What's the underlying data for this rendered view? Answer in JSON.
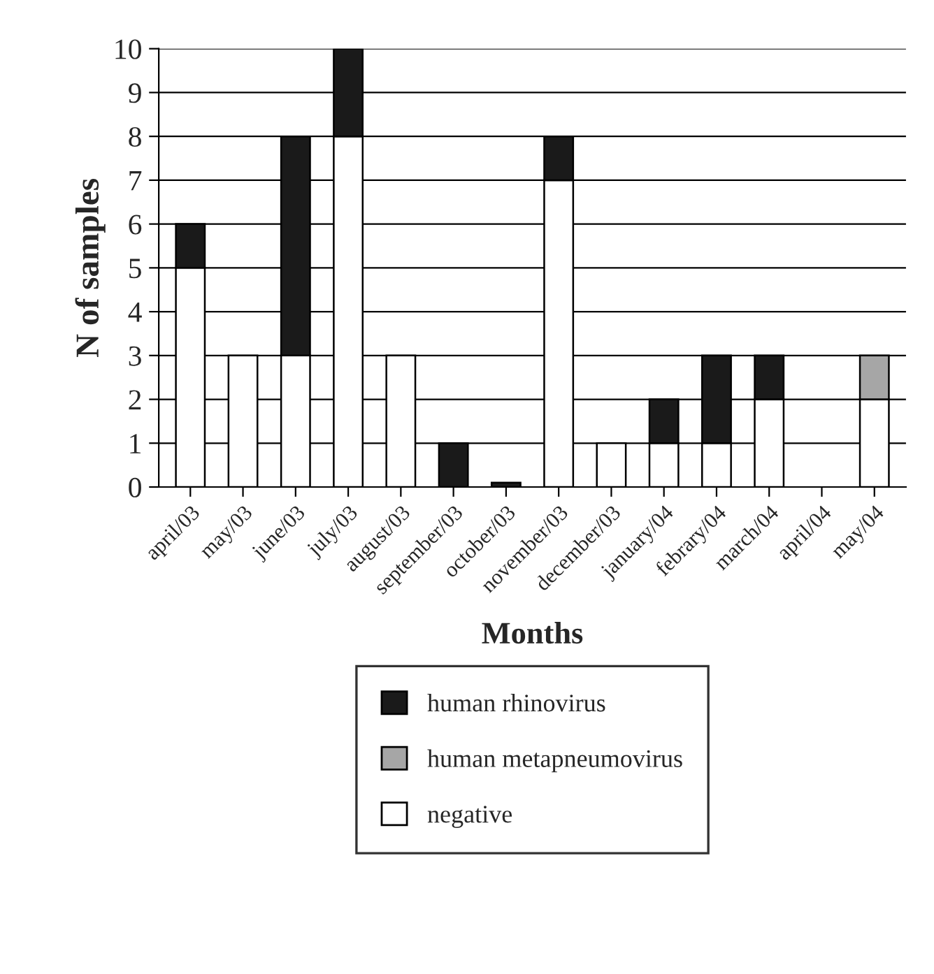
{
  "chart_data": {
    "type": "bar",
    "stacked": true,
    "xlabel": "Months",
    "ylabel": "N of samples",
    "categories": [
      "april/03",
      "may/03",
      "june/03",
      "july/03",
      "august/03",
      "september/03",
      "october/03",
      "november/03",
      "december/03",
      "january/04",
      "febrary/04",
      "march/04",
      "april/04",
      "may/04"
    ],
    "series": [
      {
        "name": "negative",
        "color": "#ffffff",
        "values": [
          5,
          3,
          3,
          8,
          3,
          0,
          0,
          7,
          1,
          1,
          1,
          2,
          0,
          2
        ]
      },
      {
        "name": "human rhinovirus",
        "color": "#1a1a1a",
        "values": [
          1,
          0,
          5,
          2,
          0,
          1,
          0.1,
          1,
          0,
          1,
          2,
          1,
          0,
          0
        ]
      },
      {
        "name": "human metapneumovirus",
        "color": "#a6a6a6",
        "values": [
          0,
          0,
          0,
          0,
          0,
          0,
          0,
          0,
          0,
          0,
          0,
          0,
          0,
          1
        ]
      }
    ],
    "ylim": [
      0,
      10
    ],
    "yticks": [
      0,
      1,
      2,
      3,
      4,
      5,
      6,
      7,
      8,
      9,
      10
    ],
    "grid": "y",
    "legend": "bottom"
  }
}
